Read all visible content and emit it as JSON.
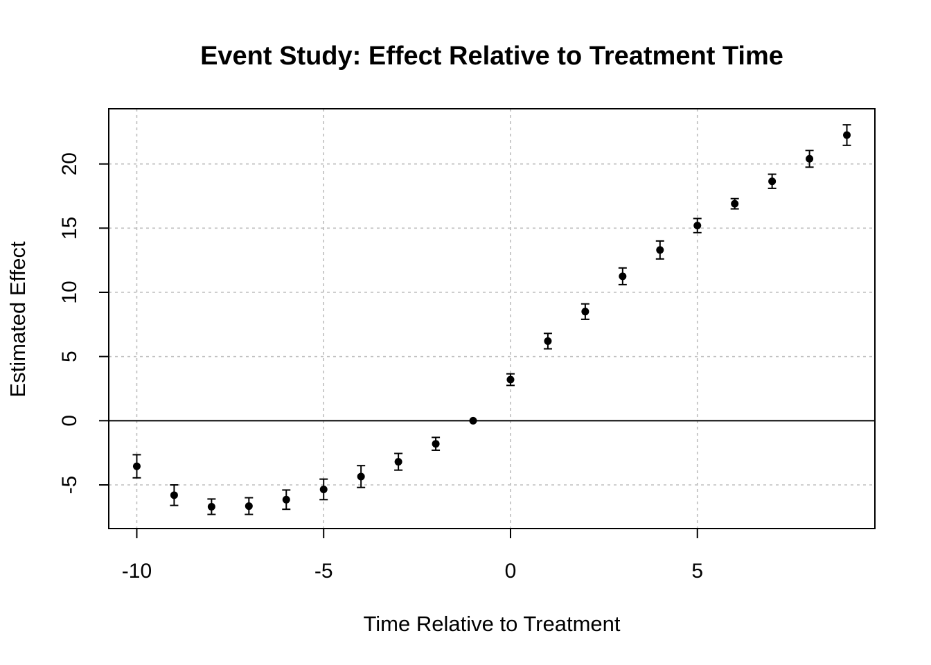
{
  "chart_data": {
    "type": "scatter",
    "title": "Event Study: Effect Relative to Treatment Time",
    "xlabel": "Time Relative to Treatment",
    "ylabel": "Estimated Effect",
    "xlim": [
      -10.75,
      9.75
    ],
    "ylim": [
      -8.4,
      24.3
    ],
    "xticks": [
      -10,
      -5,
      0,
      5
    ],
    "xtick_labels": [
      "-10",
      "-5",
      "0",
      "5"
    ],
    "yticks": [
      -5,
      0,
      5,
      10,
      15,
      20
    ],
    "ytick_labels": [
      "-5",
      "0",
      "5",
      "10",
      "15",
      "20"
    ],
    "grid": true,
    "reference_line_y": 0,
    "points": [
      {
        "x": -10,
        "y": -3.55,
        "lo": -4.45,
        "hi": -2.65
      },
      {
        "x": -9,
        "y": -5.8,
        "lo": -6.6,
        "hi": -5.0
      },
      {
        "x": -8,
        "y": -6.7,
        "lo": -7.3,
        "hi": -6.1
      },
      {
        "x": -7,
        "y": -6.65,
        "lo": -7.3,
        "hi": -6.0
      },
      {
        "x": -6,
        "y": -6.15,
        "lo": -6.9,
        "hi": -5.4
      },
      {
        "x": -5,
        "y": -5.35,
        "lo": -6.15,
        "hi": -4.55
      },
      {
        "x": -4,
        "y": -4.35,
        "lo": -5.2,
        "hi": -3.5
      },
      {
        "x": -3,
        "y": -3.2,
        "lo": -3.85,
        "hi": -2.55
      },
      {
        "x": -2,
        "y": -1.8,
        "lo": -2.3,
        "hi": -1.3
      },
      {
        "x": -1,
        "y": 0.0,
        "lo": 0.0,
        "hi": 0.0
      },
      {
        "x": 0,
        "y": 3.2,
        "lo": 2.75,
        "hi": 3.65
      },
      {
        "x": 1,
        "y": 6.2,
        "lo": 5.6,
        "hi": 6.8
      },
      {
        "x": 2,
        "y": 8.5,
        "lo": 7.9,
        "hi": 9.1
      },
      {
        "x": 3,
        "y": 11.25,
        "lo": 10.6,
        "hi": 11.9
      },
      {
        "x": 4,
        "y": 13.3,
        "lo": 12.6,
        "hi": 14.0
      },
      {
        "x": 5,
        "y": 15.2,
        "lo": 14.65,
        "hi": 15.75
      },
      {
        "x": 6,
        "y": 16.9,
        "lo": 16.5,
        "hi": 17.3
      },
      {
        "x": 7,
        "y": 18.65,
        "lo": 18.1,
        "hi": 19.2
      },
      {
        "x": 8,
        "y": 20.4,
        "lo": 19.75,
        "hi": 21.05
      },
      {
        "x": 9,
        "y": 22.25,
        "lo": 21.45,
        "hi": 23.05
      }
    ]
  }
}
